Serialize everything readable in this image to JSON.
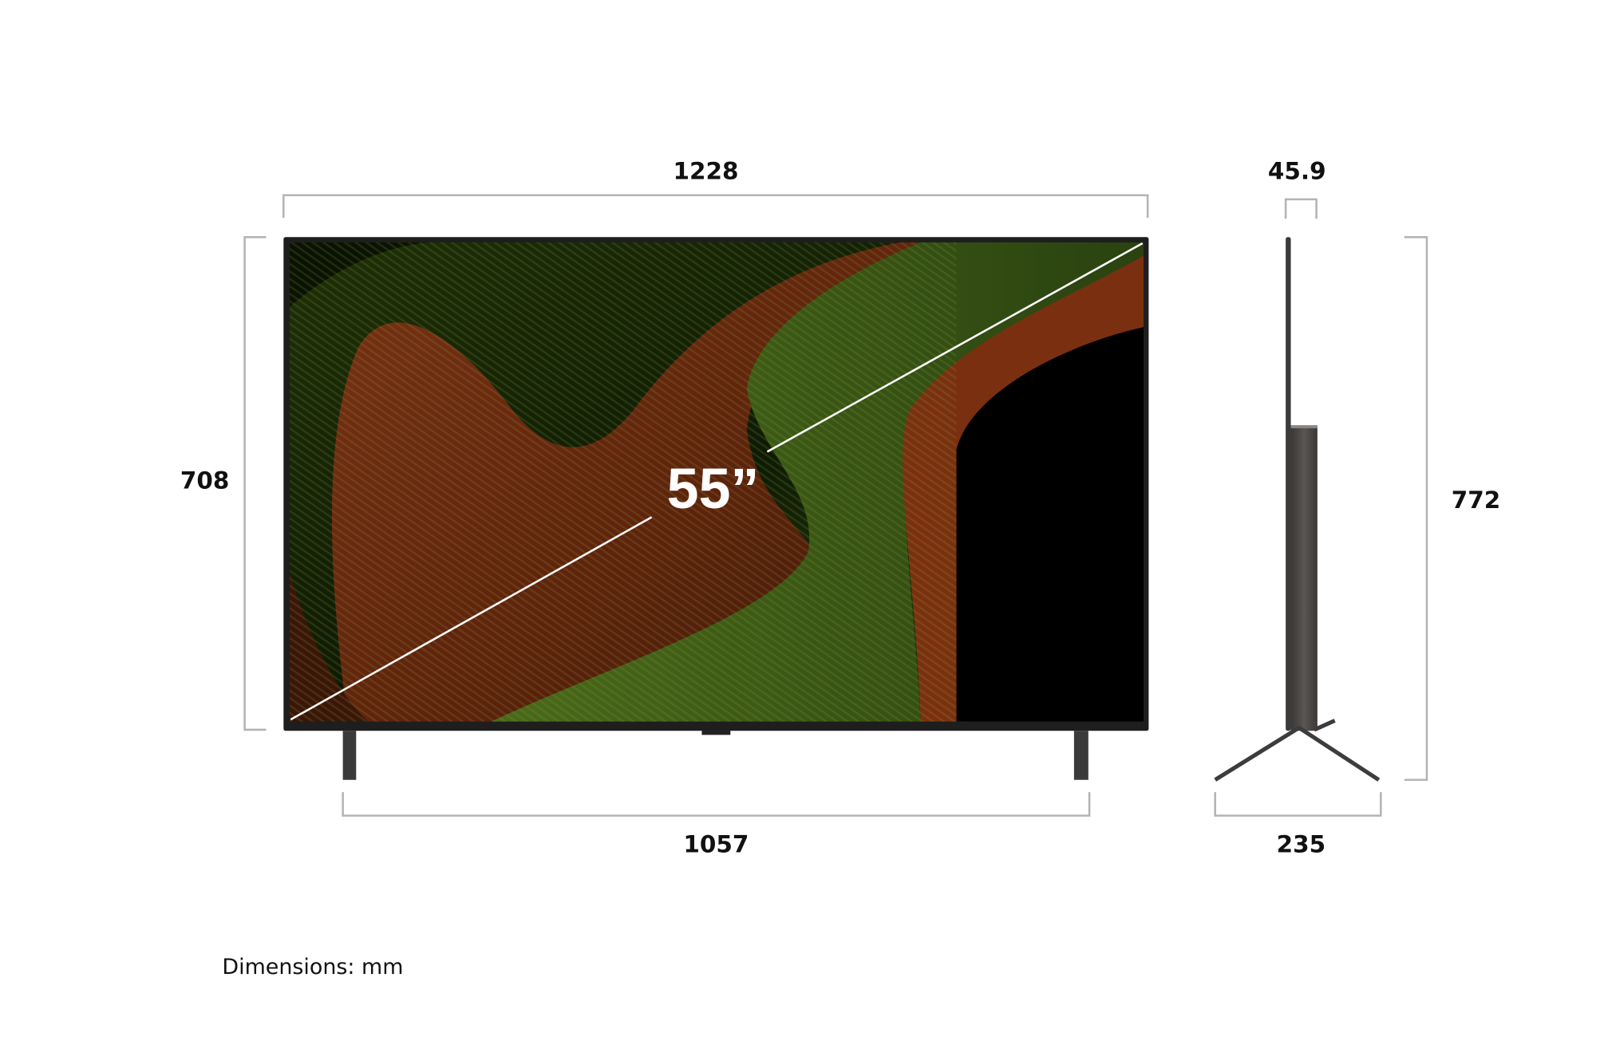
{
  "diagram": {
    "screen_size": "55”",
    "front": {
      "width": "1228",
      "height": "708",
      "stand_width": "1057"
    },
    "side": {
      "depth": "45.9",
      "height_with_stand": "772",
      "stand_depth": "235"
    },
    "units_note": "Dimensions: mm"
  },
  "colors": {
    "bracket": "#b4b4b4",
    "bezel": "#1e1e1e",
    "art_green": "#3c5a14",
    "art_red": "#6e2810",
    "side_body": "#4a4644"
  }
}
